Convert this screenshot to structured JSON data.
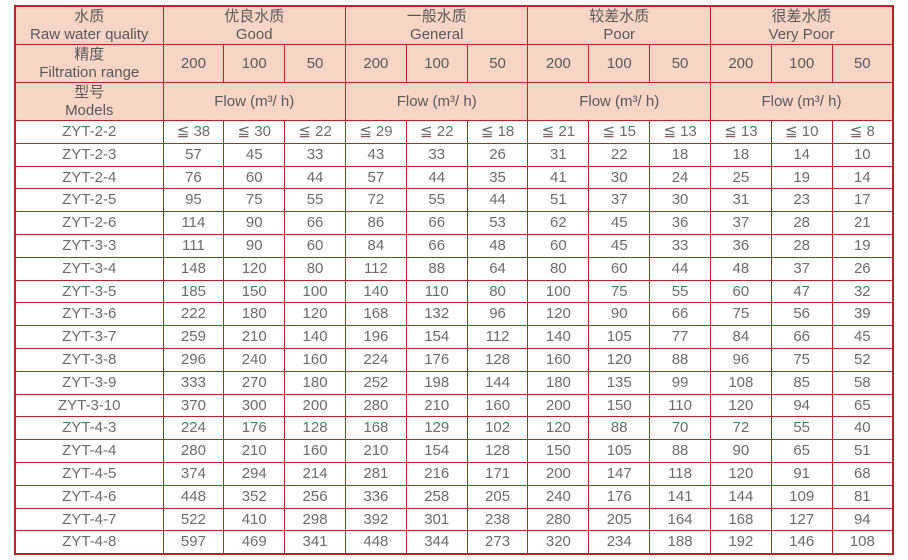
{
  "colors": {
    "border_red": "#bb2328",
    "header_background": "#f6d4c6",
    "header_text": "#595959",
    "cell_text": "#6b6b6b"
  },
  "table": {
    "row_headers": [
      {
        "zh": "水质",
        "en": "Raw water quality"
      },
      {
        "zh": "精度",
        "en": "Filtration range"
      },
      {
        "zh": "型号",
        "en": "Models"
      }
    ],
    "groups": [
      {
        "zh": "优良水质",
        "en": "Good"
      },
      {
        "zh": "一般水质",
        "en": "General"
      },
      {
        "zh": "较差水质",
        "en": "Poor"
      },
      {
        "zh": "很差水质",
        "en": "Very Poor"
      }
    ],
    "filtration_values": [
      "200",
      "100",
      "50"
    ],
    "flow_label": "Flow (m³/ h)",
    "rows": [
      {
        "model": "ZYT-2-2",
        "values": [
          "≦ 38",
          "≦ 30",
          "≦ 22",
          "≦ 29",
          "≦ 22",
          "≦ 18",
          "≦ 21",
          "≦ 15",
          "≦ 13",
          "≦ 13",
          "≦ 10",
          "≦ 8"
        ]
      },
      {
        "model": "ZYT-2-3",
        "values": [
          "57",
          "45",
          "33",
          "43",
          "33",
          "26",
          "31",
          "22",
          "18",
          "18",
          "14",
          "10"
        ]
      },
      {
        "model": "ZYT-2-4",
        "values": [
          "76",
          "60",
          "44",
          "57",
          "44",
          "35",
          "41",
          "30",
          "24",
          "25",
          "19",
          "14"
        ]
      },
      {
        "model": "ZYT-2-5",
        "values": [
          "95",
          "75",
          "55",
          "72",
          "55",
          "44",
          "51",
          "37",
          "30",
          "31",
          "23",
          "17"
        ]
      },
      {
        "model": "ZYT-2-6",
        "values": [
          "114",
          "90",
          "66",
          "86",
          "66",
          "53",
          "62",
          "45",
          "36",
          "37",
          "28",
          "21"
        ]
      },
      {
        "model": "ZYT-3-3",
        "values": [
          "111",
          "90",
          "60",
          "84",
          "66",
          "48",
          "60",
          "45",
          "33",
          "36",
          "28",
          "19"
        ]
      },
      {
        "model": "ZYT-3-4",
        "values": [
          "148",
          "120",
          "80",
          "112",
          "88",
          "64",
          "80",
          "60",
          "44",
          "48",
          "37",
          "26"
        ]
      },
      {
        "model": "ZYT-3-5",
        "values": [
          "185",
          "150",
          "100",
          "140",
          "110",
          "80",
          "100",
          "75",
          "55",
          "60",
          "47",
          "32"
        ]
      },
      {
        "model": "ZYT-3-6",
        "values": [
          "222",
          "180",
          "120",
          "168",
          "132",
          "96",
          "120",
          "90",
          "66",
          "75",
          "56",
          "39"
        ]
      },
      {
        "model": "ZYT-3-7",
        "values": [
          "259",
          "210",
          "140",
          "196",
          "154",
          "112",
          "140",
          "105",
          "77",
          "84",
          "66",
          "45"
        ]
      },
      {
        "model": "ZYT-3-8",
        "values": [
          "296",
          "240",
          "160",
          "224",
          "176",
          "128",
          "160",
          "120",
          "88",
          "96",
          "75",
          "52"
        ]
      },
      {
        "model": "ZYT-3-9",
        "values": [
          "333",
          "270",
          "180",
          "252",
          "198",
          "144",
          "180",
          "135",
          "99",
          "108",
          "85",
          "58"
        ]
      },
      {
        "model": "ZYT-3-10",
        "values": [
          "370",
          "300",
          "200",
          "280",
          "210",
          "160",
          "200",
          "150",
          "110",
          "120",
          "94",
          "65"
        ]
      },
      {
        "model": "ZYT-4-3",
        "values": [
          "224",
          "176",
          "128",
          "168",
          "129",
          "102",
          "120",
          "88",
          "70",
          "72",
          "55",
          "40"
        ]
      },
      {
        "model": "ZYT-4-4",
        "values": [
          "280",
          "210",
          "160",
          "210",
          "154",
          "128",
          "150",
          "105",
          "88",
          "90",
          "65",
          "51"
        ]
      },
      {
        "model": "ZYT-4-5",
        "values": [
          "374",
          "294",
          "214",
          "281",
          "216",
          "171",
          "200",
          "147",
          "118",
          "120",
          "91",
          "68"
        ]
      },
      {
        "model": "ZYT-4-6",
        "values": [
          "448",
          "352",
          "256",
          "336",
          "258",
          "205",
          "240",
          "176",
          "141",
          "144",
          "109",
          "81"
        ]
      },
      {
        "model": "ZYT-4-7",
        "values": [
          "522",
          "410",
          "298",
          "392",
          "301",
          "238",
          "280",
          "205",
          "164",
          "168",
          "127",
          "94"
        ]
      },
      {
        "model": "ZYT-4-8",
        "values": [
          "597",
          "469",
          "341",
          "448",
          "344",
          "273",
          "320",
          "234",
          "188",
          "192",
          "146",
          "108"
        ]
      }
    ]
  }
}
